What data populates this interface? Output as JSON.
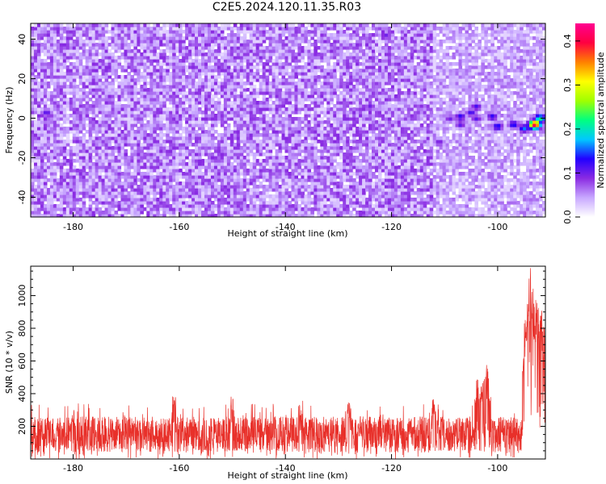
{
  "title": "C2E5.2024.120.11.35.R03",
  "chart_data": [
    {
      "type": "heatmap",
      "xlabel": "Height of straight line (km)",
      "ylabel": "Frequency (Hz)",
      "xlim": [
        -188,
        -91
      ],
      "ylim": [
        -50,
        48
      ],
      "x_ticks": [
        -180,
        -160,
        -140,
        -120,
        -100
      ],
      "y_ticks": [
        -40,
        -20,
        0,
        20,
        40
      ],
      "colorbar": {
        "label": "Normalized spectral amplitude",
        "range": [
          0.0,
          0.44
        ],
        "ticks": [
          0.0,
          0.1,
          0.2,
          0.3,
          0.4
        ],
        "colormap": [
          "#ffffff",
          "#c8a8ff",
          "#8a2be2",
          "#2200ff",
          "#00c8ff",
          "#00ff80",
          "#a0ff00",
          "#ffff00",
          "#ff8000",
          "#ff0040",
          "#ff0090"
        ]
      },
      "background_level": 0.06,
      "hotspots": [
        {
          "x": -93,
          "y": -3,
          "value": 0.42
        },
        {
          "x": -92,
          "y": 0,
          "value": 0.22
        },
        {
          "x": -95,
          "y": -5,
          "value": 0.16
        },
        {
          "x": -97,
          "y": -3,
          "value": 0.14
        },
        {
          "x": -100,
          "y": -4,
          "value": 0.14
        },
        {
          "x": -101,
          "y": 1,
          "value": 0.13
        },
        {
          "x": -104,
          "y": 6,
          "value": 0.12
        },
        {
          "x": -104,
          "y": 0,
          "value": 0.11
        },
        {
          "x": -105,
          "y": 3,
          "value": 0.12
        },
        {
          "x": -107,
          "y": 1,
          "value": 0.13
        },
        {
          "x": -107,
          "y": -3,
          "value": 0.11
        },
        {
          "x": -109,
          "y": 0,
          "value": 0.1
        },
        {
          "x": -111,
          "y": -12,
          "value": 0.1
        },
        {
          "x": -185,
          "y": 3,
          "value": 0.11
        },
        {
          "x": -157,
          "y": -37,
          "value": 0.1
        },
        {
          "x": -124,
          "y": 6,
          "value": 0.1
        },
        {
          "x": -121,
          "y": 42,
          "value": 0.1
        }
      ]
    },
    {
      "type": "line",
      "xlabel": "Height of straight line (km)",
      "ylabel": "SNR (10 * v/v)",
      "xlim": [
        -188,
        -91
      ],
      "ylim": [
        0,
        1180
      ],
      "x_ticks": [
        -180,
        -160,
        -140,
        -120,
        -100
      ],
      "y_ticks": [
        200,
        400,
        600,
        800,
        1000
      ],
      "color": "#e8302a",
      "baseline_level": [
        40,
        260
      ],
      "peaks": [
        {
          "x": -180,
          "y": 300
        },
        {
          "x": -161,
          "y": 410
        },
        {
          "x": -150,
          "y": 400
        },
        {
          "x": -137,
          "y": 380
        },
        {
          "x": -128,
          "y": 380
        },
        {
          "x": -112,
          "y": 370
        },
        {
          "x": -104,
          "y": 470
        },
        {
          "x": -103,
          "y": 480
        },
        {
          "x": -102,
          "y": 600
        },
        {
          "x": -95,
          "y": 630
        },
        {
          "x": -94.5,
          "y": 1000
        },
        {
          "x": -94,
          "y": 1170
        },
        {
          "x": -93.5,
          "y": 1080
        },
        {
          "x": -93,
          "y": 980
        },
        {
          "x": -92.5,
          "y": 970
        },
        {
          "x": -92,
          "y": 920
        },
        {
          "x": -91.5,
          "y": 830
        }
      ]
    }
  ]
}
